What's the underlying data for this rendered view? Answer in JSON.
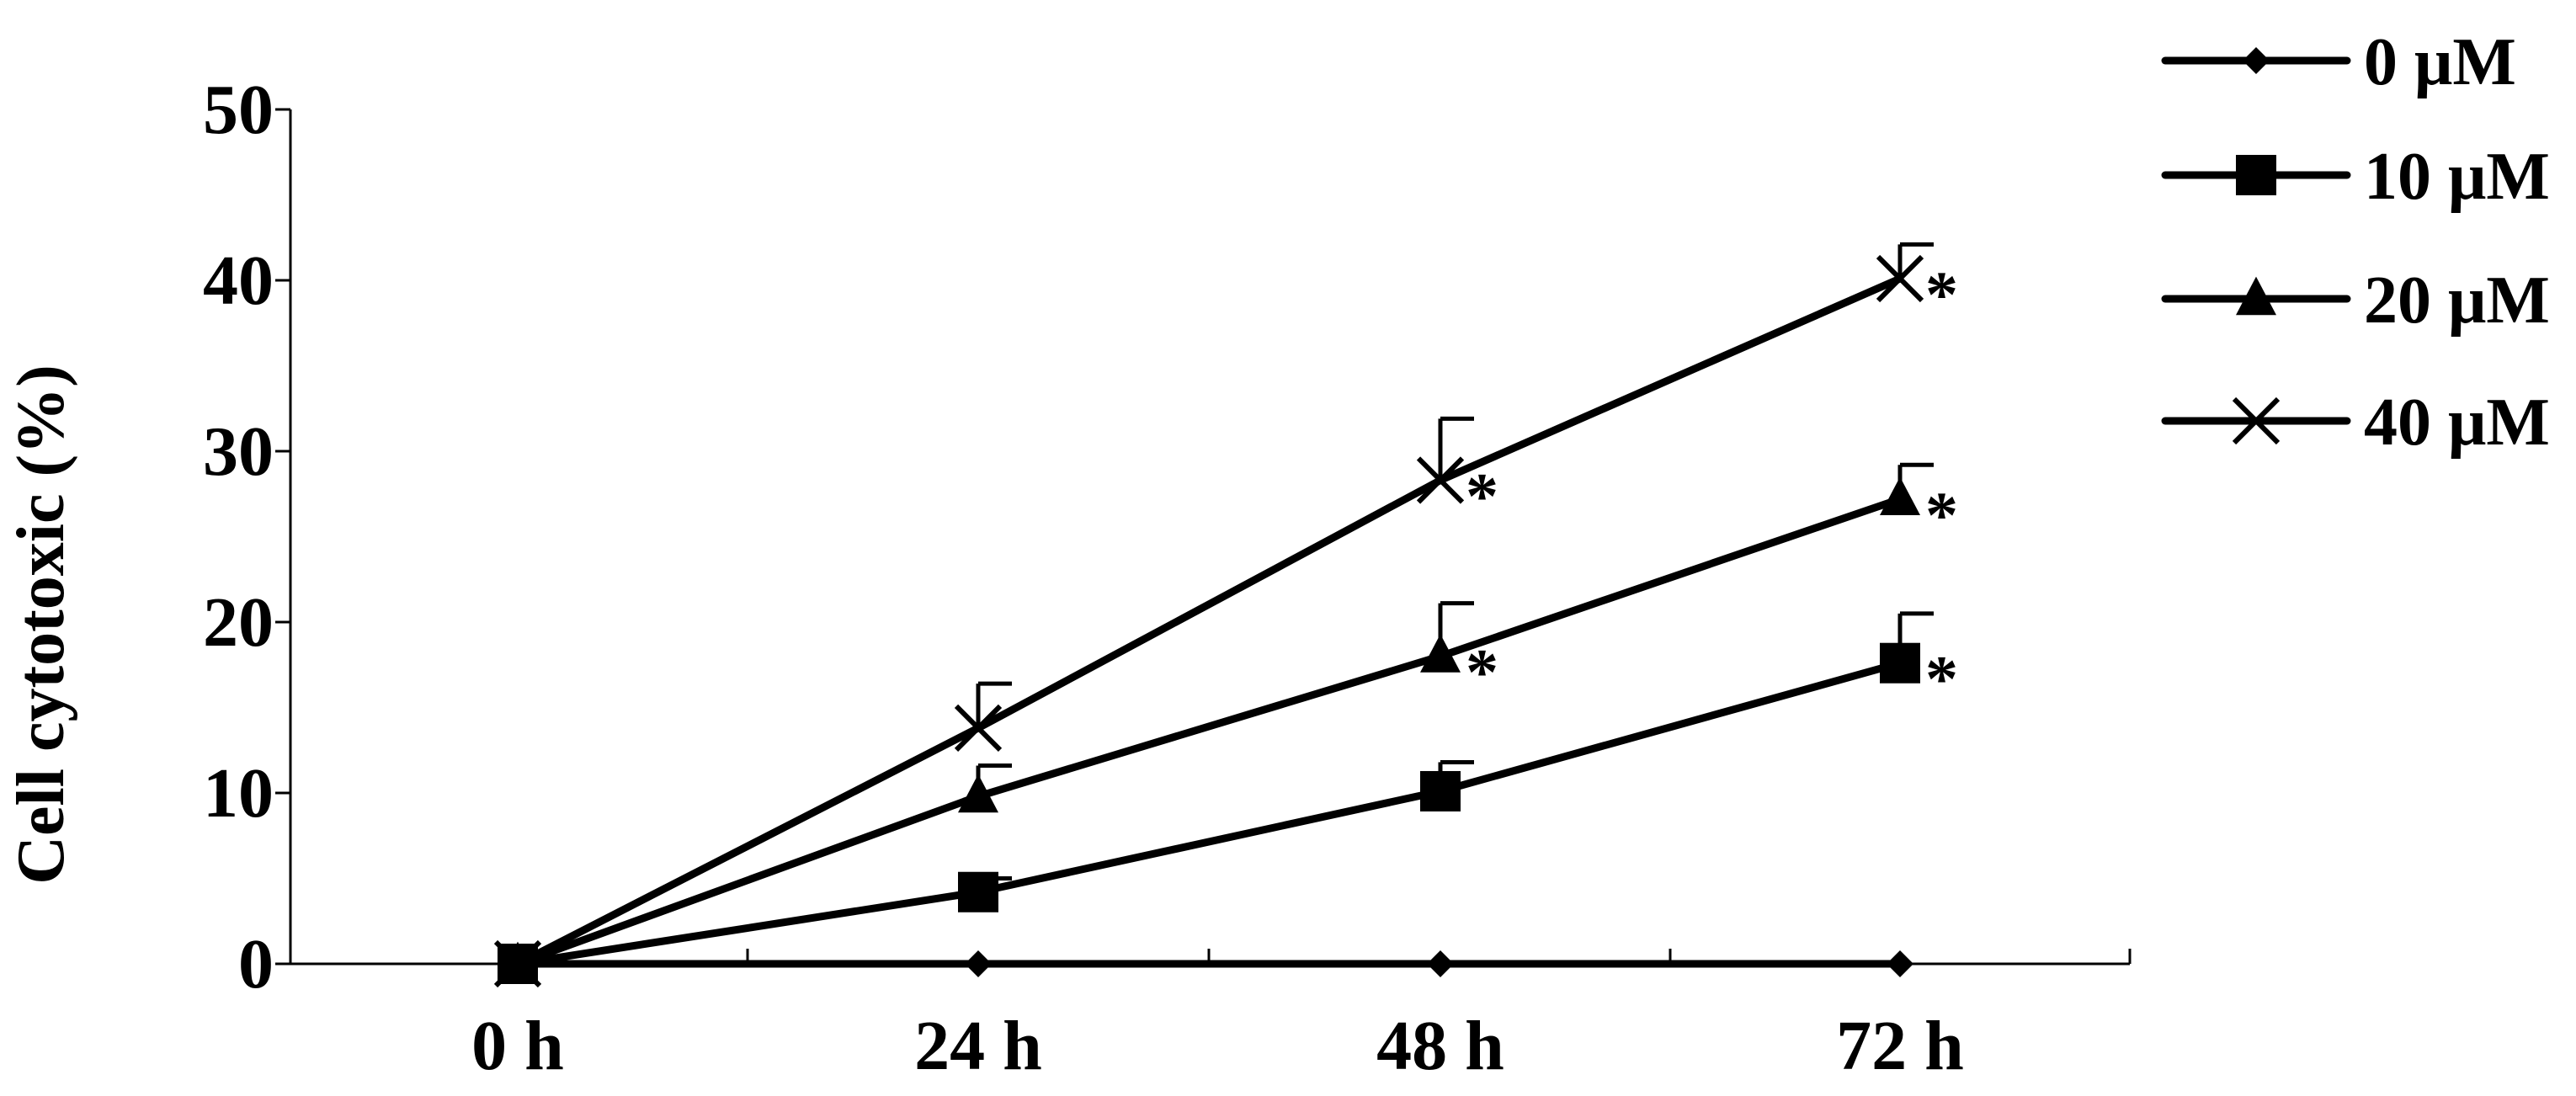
{
  "chart_data": {
    "type": "line",
    "title": "",
    "xlabel": "",
    "ylabel": "Cell cytotoxic (%)",
    "categories": [
      "0 h",
      "24 h",
      "48 h",
      "72 h"
    ],
    "ylim": [
      0,
      50
    ],
    "yticks": [
      0,
      10,
      20,
      30,
      40,
      50
    ],
    "grid": false,
    "legend_position": "top-right",
    "series": [
      {
        "name": "0 μM",
        "marker": "diamond",
        "values": [
          0,
          0,
          0,
          0
        ],
        "errors": [
          0,
          0,
          0,
          0
        ],
        "significant": [
          false,
          false,
          false,
          false
        ]
      },
      {
        "name": "10 μM",
        "marker": "square",
        "values": [
          0,
          4.2,
          10.1,
          17.6
        ],
        "errors": [
          0,
          0.8,
          1.7,
          2.9
        ],
        "significant": [
          false,
          false,
          false,
          true
        ]
      },
      {
        "name": "20 μM",
        "marker": "triangle",
        "values": [
          0,
          9.8,
          18.0,
          27.2
        ],
        "errors": [
          0,
          1.8,
          3.1,
          2.0
        ],
        "significant": [
          false,
          false,
          true,
          true
        ]
      },
      {
        "name": "40 μM",
        "marker": "x",
        "values": [
          0,
          13.8,
          28.3,
          40.1
        ],
        "errors": [
          0,
          2.6,
          3.6,
          2.0
        ],
        "significant": [
          false,
          false,
          true,
          true
        ]
      }
    ],
    "significance_label": "*"
  }
}
